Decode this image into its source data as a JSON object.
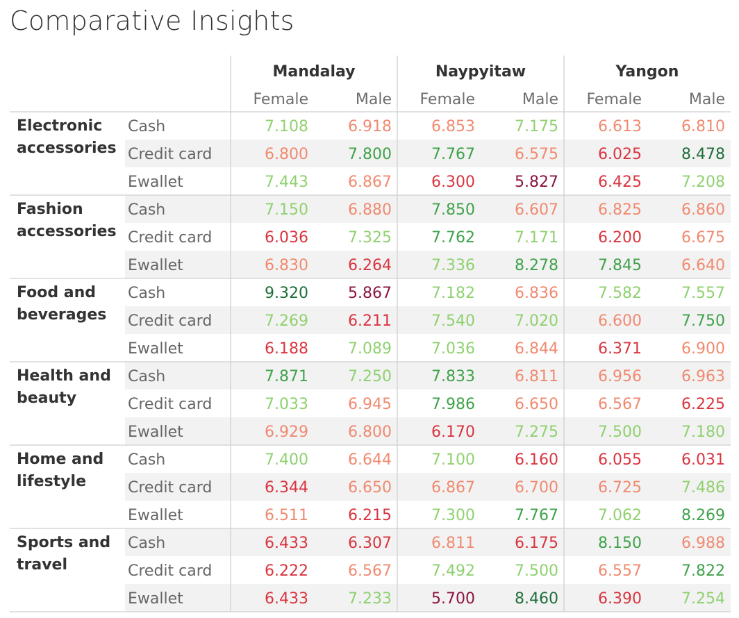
{
  "chart_data": {
    "type": "heatmap",
    "title": "Comparative Insights",
    "cities": [
      "Mandalay",
      "Naypyitaw",
      "Yangon"
    ],
    "genders": [
      "Female",
      "Male"
    ],
    "columns": [
      {
        "city": "Mandalay",
        "gender": "Female"
      },
      {
        "city": "Mandalay",
        "gender": "Male"
      },
      {
        "city": "Naypyitaw",
        "gender": "Female"
      },
      {
        "city": "Naypyitaw",
        "gender": "Male"
      },
      {
        "city": "Yangon",
        "gender": "Female"
      },
      {
        "city": "Yangon",
        "gender": "Male"
      }
    ],
    "product_lines": [
      {
        "label": "Electronic accessories",
        "label_lines": [
          "Electronic",
          "accessories"
        ]
      },
      {
        "label": "Fashion accessories",
        "label_lines": [
          "Fashion",
          "accessories"
        ]
      },
      {
        "label": "Food and beverages",
        "label_lines": [
          "Food and",
          "beverages"
        ]
      },
      {
        "label": "Health and beauty",
        "label_lines": [
          "Health and",
          "beauty"
        ]
      },
      {
        "label": "Home and lifestyle",
        "label_lines": [
          "Home and",
          "lifestyle"
        ]
      },
      {
        "label": "Sports and travel",
        "label_lines": [
          "Sports and",
          "travel"
        ]
      }
    ],
    "payments": [
      "Cash",
      "Credit card",
      "Ewallet"
    ],
    "rows": [
      {
        "product_line": "Electronic accessories",
        "payment": "Cash",
        "values": [
          "7.108",
          "6.918",
          "6.853",
          "7.175",
          "6.613",
          "6.810"
        ]
      },
      {
        "product_line": "Electronic accessories",
        "payment": "Credit card",
        "values": [
          "6.800",
          "7.800",
          "7.767",
          "6.575",
          "6.025",
          "8.478"
        ]
      },
      {
        "product_line": "Electronic accessories",
        "payment": "Ewallet",
        "values": [
          "7.443",
          "6.867",
          "6.300",
          "5.827",
          "6.425",
          "7.208"
        ]
      },
      {
        "product_line": "Fashion accessories",
        "payment": "Cash",
        "values": [
          "7.150",
          "6.880",
          "7.850",
          "6.607",
          "6.825",
          "6.860"
        ]
      },
      {
        "product_line": "Fashion accessories",
        "payment": "Credit card",
        "values": [
          "6.036",
          "7.325",
          "7.762",
          "7.171",
          "6.200",
          "6.675"
        ]
      },
      {
        "product_line": "Fashion accessories",
        "payment": "Ewallet",
        "values": [
          "6.830",
          "6.264",
          "7.336",
          "8.278",
          "7.845",
          "6.640"
        ]
      },
      {
        "product_line": "Food and beverages",
        "payment": "Cash",
        "values": [
          "9.320",
          "5.867",
          "7.182",
          "6.836",
          "7.582",
          "7.557"
        ]
      },
      {
        "product_line": "Food and beverages",
        "payment": "Credit card",
        "values": [
          "7.269",
          "6.211",
          "7.540",
          "7.020",
          "6.600",
          "7.750"
        ]
      },
      {
        "product_line": "Food and beverages",
        "payment": "Ewallet",
        "values": [
          "6.188",
          "7.089",
          "7.036",
          "6.844",
          "6.371",
          "6.900"
        ]
      },
      {
        "product_line": "Health and beauty",
        "payment": "Cash",
        "values": [
          "7.871",
          "7.250",
          "7.833",
          "6.811",
          "6.956",
          "6.963"
        ]
      },
      {
        "product_line": "Health and beauty",
        "payment": "Credit card",
        "values": [
          "7.033",
          "6.945",
          "7.986",
          "6.650",
          "6.567",
          "6.225"
        ]
      },
      {
        "product_line": "Health and beauty",
        "payment": "Ewallet",
        "values": [
          "6.929",
          "6.800",
          "6.170",
          "7.275",
          "7.500",
          "7.180"
        ]
      },
      {
        "product_line": "Home and lifestyle",
        "payment": "Cash",
        "values": [
          "7.400",
          "6.644",
          "7.100",
          "6.160",
          "6.055",
          "6.031"
        ]
      },
      {
        "product_line": "Home and lifestyle",
        "payment": "Credit card",
        "values": [
          "6.344",
          "6.650",
          "6.867",
          "6.700",
          "6.725",
          "7.486"
        ]
      },
      {
        "product_line": "Home and lifestyle",
        "payment": "Ewallet",
        "values": [
          "6.511",
          "6.215",
          "7.300",
          "7.767",
          "7.062",
          "8.269"
        ]
      },
      {
        "product_line": "Sports and travel",
        "payment": "Cash",
        "values": [
          "6.433",
          "6.307",
          "6.811",
          "6.175",
          "8.150",
          "6.988"
        ]
      },
      {
        "product_line": "Sports and travel",
        "payment": "Credit card",
        "values": [
          "6.222",
          "6.567",
          "7.492",
          "7.500",
          "6.557",
          "7.822"
        ]
      },
      {
        "product_line": "Sports and travel",
        "payment": "Ewallet",
        "values": [
          "6.433",
          "7.233",
          "5.700",
          "8.460",
          "6.390",
          "7.254"
        ]
      }
    ],
    "color_scale": {
      "type": "diverging",
      "low": "#8c1442",
      "low_mid": "#d93540",
      "mid_low": "#f08a70",
      "mid_high": "#8fd16f",
      "high_mid": "#3fa24a",
      "high": "#1f6e3a"
    },
    "banded_rows": true,
    "band_color": "#f2f2f2"
  }
}
